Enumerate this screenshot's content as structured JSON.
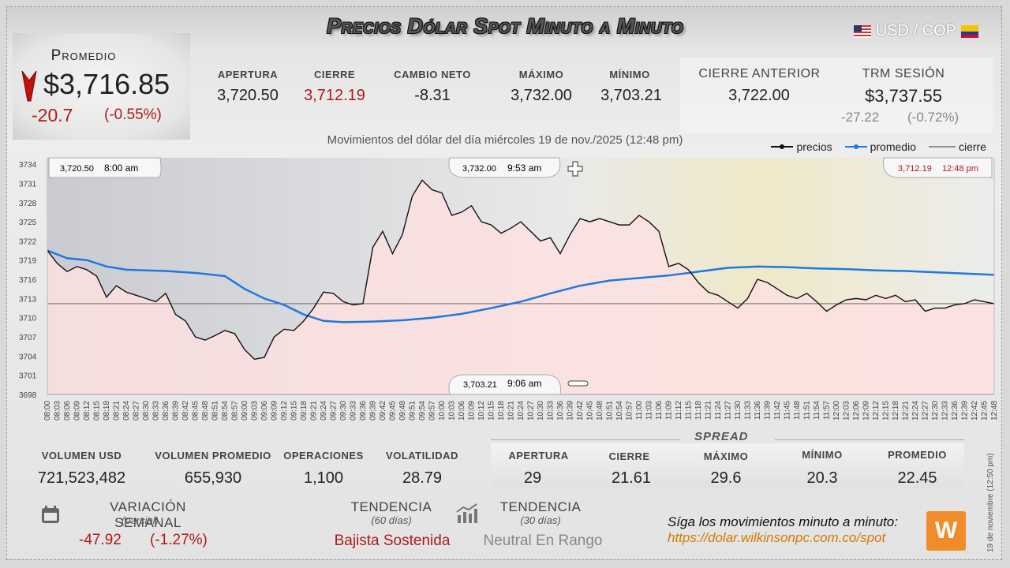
{
  "header": {
    "title": "Precios Dólar Spot Minuto a Minuto",
    "pair": "USD / COP"
  },
  "promedio": {
    "label": "Promedio",
    "value": "$3,716.85",
    "change": "-20.7",
    "change_pct": "(-0.55%)"
  },
  "stats": [
    {
      "label": "APERTURA",
      "value": "3,720.50"
    },
    {
      "label": "CIERRE",
      "value": "3,712.19"
    },
    {
      "label": "CAMBIO NETO",
      "value": "-8.31"
    },
    {
      "label": "MÁXIMO",
      "value": "3,732.00"
    },
    {
      "label": "MÍNIMO",
      "value": "3,703.21"
    }
  ],
  "cierre_anterior": {
    "label": "CIERRE ANTERIOR",
    "value": "3,722.00"
  },
  "trm": {
    "label": "TRM SESIÓN",
    "value": "$3,737.55",
    "change": "-27.22",
    "change_pct": "(-0.72%)"
  },
  "subtitle": "Movimientos del dólar del día miércoles 19 de nov./2025 (12:48 pm)",
  "legend": {
    "precios": "precios",
    "promedio": "promedio",
    "cierre": "cierre"
  },
  "chart_data": {
    "type": "line",
    "y_ticks": [
      "3734",
      "3731",
      "3728",
      "3725",
      "3722",
      "3719",
      "3716",
      "3713",
      "3710",
      "3707",
      "3704",
      "3701",
      "3698"
    ],
    "ylim": [
      3698,
      3735
    ],
    "x_ticks": [
      "08:00",
      "08:03",
      "08:06",
      "08:09",
      "08:12",
      "08:15",
      "08:18",
      "08:21",
      "08:24",
      "08:27",
      "08:30",
      "08:33",
      "08:36",
      "08:39",
      "08:42",
      "08:45",
      "08:48",
      "08:51",
      "08:54",
      "08:57",
      "09:00",
      "09:03",
      "09:06",
      "09:09",
      "09:12",
      "09:15",
      "09:18",
      "09:21",
      "09:24",
      "09:27",
      "09:30",
      "09:33",
      "09:36",
      "09:39",
      "09:42",
      "09:45",
      "09:48",
      "09:51",
      "09:54",
      "09:57",
      "10:00",
      "10:03",
      "10:06",
      "10:09",
      "10:12",
      "10:15",
      "10:18",
      "10:21",
      "10:24",
      "10:27",
      "10:30",
      "10:33",
      "10:36",
      "10:39",
      "10:42",
      "10:45",
      "10:48",
      "10:51",
      "10:54",
      "10:57",
      "11:00",
      "11:03",
      "11:06",
      "11:09",
      "11:12",
      "11:15",
      "11:18",
      "11:21",
      "11:24",
      "11:27",
      "11:30",
      "11:33",
      "11:36",
      "11:39",
      "11:42",
      "11:45",
      "11:48",
      "11:51",
      "11:54",
      "11:57",
      "12:00",
      "12:03",
      "12:06",
      "12:09",
      "12:12",
      "12:15",
      "12:18",
      "12:21",
      "12:24",
      "12:27",
      "12:30",
      "12:33",
      "12:36",
      "12:39",
      "12:42",
      "12:45",
      "12:48"
    ],
    "series": [
      {
        "name": "precios",
        "color": "#111111",
        "x_minutes": [
          0,
          3,
          6,
          9,
          12,
          15,
          18,
          21,
          24,
          27,
          30,
          33,
          36,
          39,
          42,
          45,
          48,
          51,
          54,
          57,
          60,
          63,
          66,
          69,
          72,
          75,
          78,
          81,
          84,
          87,
          90,
          93,
          96,
          99,
          102,
          105,
          108,
          111,
          114,
          117,
          120,
          123,
          126,
          129,
          132,
          135,
          138,
          141,
          144,
          147,
          150,
          153,
          156,
          159,
          162,
          165,
          168,
          171,
          174,
          177,
          180,
          183,
          186,
          189,
          192,
          195,
          198,
          201,
          204,
          207,
          210,
          213,
          216,
          219,
          222,
          225,
          228,
          231,
          234,
          237,
          240,
          243,
          246,
          249,
          252,
          255,
          258,
          261,
          264,
          267,
          270,
          273,
          276,
          279,
          282,
          285,
          288
        ],
        "values": [
          3720.5,
          3718.5,
          3717.2,
          3718.0,
          3717.5,
          3716.5,
          3713.2,
          3715.0,
          3714.0,
          3713.5,
          3713.0,
          3712.5,
          3713.8,
          3710.5,
          3709.5,
          3707.0,
          3706.5,
          3707.2,
          3708.0,
          3707.5,
          3705.0,
          3703.5,
          3703.8,
          3707.0,
          3708.2,
          3708.0,
          3709.5,
          3711.5,
          3714.0,
          3713.8,
          3712.5,
          3712.0,
          3712.2,
          3721.0,
          3723.5,
          3720.0,
          3723.0,
          3729.0,
          3731.5,
          3730.0,
          3729.5,
          3726.0,
          3726.5,
          3727.5,
          3725.0,
          3724.5,
          3723.2,
          3724.0,
          3725.0,
          3723.5,
          3722.0,
          3722.5,
          3720.0,
          3723.0,
          3725.5,
          3725.0,
          3725.5,
          3725.0,
          3724.5,
          3724.5,
          3726.0,
          3725.0,
          3723.5,
          3718.0,
          3718.5,
          3717.5,
          3715.5,
          3714.0,
          3713.5,
          3712.5,
          3711.5,
          3713.0,
          3716.0,
          3715.5,
          3714.5,
          3713.5,
          3713.0,
          3713.8,
          3712.5,
          3711.0,
          3712.0,
          3712.8,
          3713.0,
          3712.8,
          3713.5,
          3713.0,
          3713.5,
          3712.5,
          3712.8,
          3711.0,
          3711.5,
          3711.5,
          3712.0,
          3712.2,
          3712.8,
          3712.5,
          3712.19
        ]
      },
      {
        "name": "promedio",
        "color": "#1f78e0",
        "x_minutes": [
          0,
          6,
          12,
          18,
          24,
          30,
          36,
          45,
          54,
          60,
          66,
          72,
          78,
          84,
          90,
          99,
          108,
          117,
          126,
          135,
          144,
          153,
          162,
          171,
          180,
          189,
          198,
          207,
          216,
          225,
          234,
          243,
          252,
          261,
          270,
          279,
          288
        ],
        "values": [
          3720.5,
          3719.3,
          3719.0,
          3718.0,
          3717.5,
          3717.4,
          3717.3,
          3717.0,
          3716.5,
          3714.5,
          3713.0,
          3712.0,
          3710.5,
          3709.5,
          3709.3,
          3709.4,
          3709.6,
          3710.0,
          3710.6,
          3711.5,
          3712.5,
          3713.8,
          3715.0,
          3715.8,
          3716.2,
          3716.6,
          3717.2,
          3717.8,
          3718.0,
          3717.9,
          3717.7,
          3717.6,
          3717.4,
          3717.3,
          3717.1,
          3716.9,
          3716.7
        ]
      },
      {
        "name": "cierre",
        "color": "#444444",
        "values": [
          3712.19
        ]
      }
    ],
    "annotations": [
      {
        "text_value": "3,720.50",
        "text_time": "8:00 am"
      },
      {
        "text_value": "3,732.00",
        "text_time": "9:53 am"
      },
      {
        "text_value": "3,712.19",
        "text_time": "12:48 pm"
      },
      {
        "text_value": "3,703.21",
        "text_time": "9:06 am"
      }
    ]
  },
  "bottom_stats": [
    {
      "label": "VOLUMEN USD",
      "value": "721,523,482"
    },
    {
      "label": "VOLUMEN PROMEDIO",
      "value": "655,930"
    },
    {
      "label": "OPERACIONES",
      "value": "1,100"
    },
    {
      "label": "VOLATILIDAD",
      "value": "28.79"
    }
  ],
  "spread": {
    "title": "SPREAD",
    "items": [
      {
        "label": "APERTURA",
        "value": "29"
      },
      {
        "label": "CIERRE",
        "value": "21.61"
      },
      {
        "label": "MÁXIMO",
        "value": "29.6"
      },
      {
        "label": "MÍNIMO",
        "value": "20.3"
      },
      {
        "label": "PROMEDIO",
        "value": "22.45"
      }
    ]
  },
  "semanal": {
    "label": "VARIACIÓN SEMANAL",
    "sub": "(parcial)",
    "value": "-47.92",
    "pct": "(-1.27%)"
  },
  "tendencia60": {
    "label": "TENDENCIA",
    "sub": "(60 días)",
    "value": "Bajista Sostenida"
  },
  "tendencia30": {
    "label": "TENDENCIA",
    "sub": "(30 días)",
    "value": "Neutral En Rango"
  },
  "footer": {
    "follow": "Síga los movimientos minuto a minuto:",
    "url": "https://dolar.wilkinsonpc.com.co/spot",
    "side_note": "19 de noviembre (12:50 pm)",
    "logo_text": "W"
  },
  "colors": {
    "accent_red": "#b01a1a",
    "promedio_blue": "#1f78e0",
    "logo_orange": "#f08c2a"
  }
}
